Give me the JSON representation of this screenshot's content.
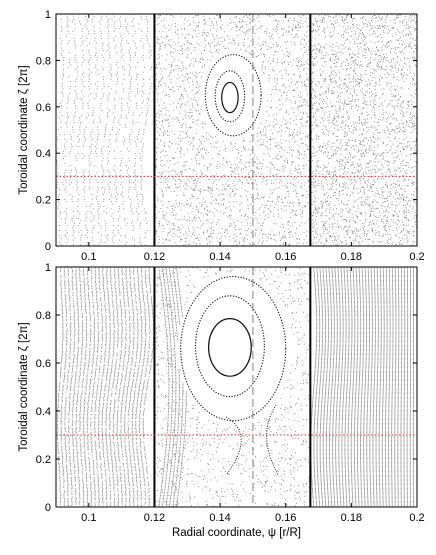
{
  "chart_data": [
    {
      "type": "scatter",
      "title": "",
      "xlabel": "",
      "ylabel": "Toroidal coordinate ζ [2π]",
      "xlim": [
        0.09,
        0.2
      ],
      "ylim": [
        0,
        1
      ],
      "xticks": [
        0.1,
        0.12,
        0.14,
        0.16,
        0.18,
        0.2
      ],
      "xtick_labels": [
        "0.1",
        "0.12",
        "0.14",
        "0.16",
        "0.18",
        "0.2"
      ],
      "yticks": [
        0,
        0.2,
        0.4,
        0.6,
        0.8,
        1
      ],
      "ytick_labels": [
        "0",
        "0.2",
        "0.4",
        "0.6",
        "0.8",
        "1"
      ],
      "vertical_lines": [
        {
          "x": 0.12,
          "style": "solid",
          "color": "#000000"
        },
        {
          "x": 0.1675,
          "style": "solid",
          "color": "#000000"
        },
        {
          "x": 0.15,
          "style": "dashed",
          "color": "#999999"
        }
      ],
      "horizontal_lines": [
        {
          "y": 0.3,
          "style": "dotted",
          "color": "#e03030"
        }
      ],
      "islands": [
        {
          "center": [
            0.143,
            0.64
          ],
          "half_widths": [
            0.0025,
            0.065
          ],
          "style": "solid"
        },
        {
          "center": [
            0.143,
            0.645
          ],
          "half_widths": [
            0.0045,
            0.11
          ],
          "style": "dotted"
        },
        {
          "center": [
            0.144,
            0.65
          ],
          "half_widths": [
            0.0085,
            0.175
          ],
          "style": "dotted"
        }
      ],
      "grid": false
    },
    {
      "type": "scatter",
      "title": "",
      "xlabel": "Radial coordinate, ψ [r/R]",
      "ylabel": "Toroidal coordinate ζ [2π]",
      "xlim": [
        0.09,
        0.2
      ],
      "ylim": [
        0,
        1
      ],
      "xticks": [
        0.1,
        0.12,
        0.14,
        0.16,
        0.18,
        0.2
      ],
      "xtick_labels": [
        "0.1",
        "0.12",
        "0.14",
        "0.16",
        "0.18",
        "0.2"
      ],
      "yticks": [
        0,
        0.2,
        0.4,
        0.6,
        0.8,
        1
      ],
      "ytick_labels": [
        "0",
        "0.2",
        "0.4",
        "0.6",
        "0.8",
        "1"
      ],
      "vertical_lines": [
        {
          "x": 0.12,
          "style": "solid",
          "color": "#000000"
        },
        {
          "x": 0.1675,
          "style": "solid",
          "color": "#000000"
        },
        {
          "x": 0.15,
          "style": "dashed",
          "color": "#999999"
        }
      ],
      "horizontal_lines": [
        {
          "y": 0.3,
          "style": "dotted",
          "color": "#e03030"
        }
      ],
      "islands": [
        {
          "center": [
            0.143,
            0.665
          ],
          "half_widths": [
            0.0065,
            0.12
          ],
          "style": "solid"
        },
        {
          "center": [
            0.143,
            0.67
          ],
          "half_widths": [
            0.0105,
            0.21
          ],
          "style": "dotted"
        },
        {
          "center": [
            0.144,
            0.66
          ],
          "half_widths": [
            0.016,
            0.3
          ],
          "style": "dotted"
        }
      ],
      "separatrix_x_point": [
        0.151,
        0.3
      ],
      "grid": false
    }
  ]
}
